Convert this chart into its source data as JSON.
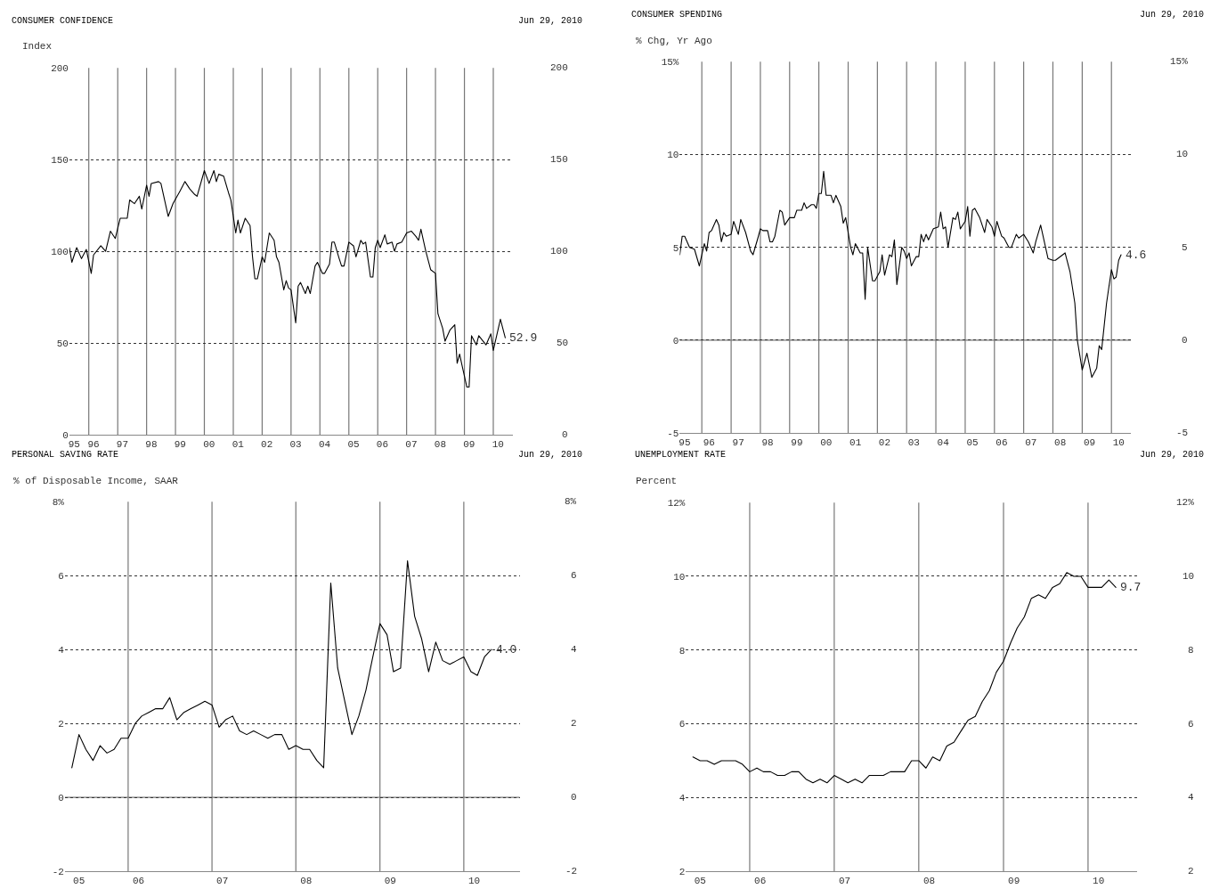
{
  "chart_data": [
    {
      "type": "line",
      "title": "CONSUMER CONFIDENCE",
      "ylabel": "Index",
      "annotations": [
        "Jun 29, 2010",
        {
          "text": "52.9",
          "x": "2010-06",
          "y": 52.9
        }
      ],
      "x": [
        "1995-05",
        "1995-06",
        "1995-08",
        "1995-10",
        "1995-12",
        "1996-02",
        "1996-03",
        "1996-06",
        "1996-08",
        "1996-10",
        "1996-12",
        "1997-02",
        "1997-05",
        "1997-06",
        "1997-08",
        "1997-10",
        "1997-11",
        "1998-01",
        "1998-02",
        "1998-03",
        "1998-06",
        "1998-07",
        "1998-10",
        "1998-12",
        "1999-03",
        "1999-05",
        "1999-07",
        "1999-09",
        "1999-10",
        "2000-01",
        "2000-03",
        "2000-05",
        "2000-06",
        "2000-07",
        "2000-09",
        "2000-11",
        "2000-12",
        "2001-02",
        "2001-03",
        "2001-04",
        "2001-06",
        "2001-08",
        "2001-09",
        "2001-10",
        "2001-11",
        "2002-01",
        "2002-02",
        "2002-04",
        "2002-06",
        "2002-07",
        "2002-08",
        "2002-10",
        "2002-11",
        "2002-12",
        "2003-01",
        "2003-03",
        "2003-04",
        "2003-05",
        "2003-07",
        "2003-08",
        "2003-09",
        "2003-11",
        "2003-12",
        "2004-02",
        "2004-03",
        "2004-05",
        "2004-06",
        "2004-07",
        "2004-09",
        "2004-10",
        "2004-11",
        "2005-01",
        "2005-03",
        "2005-04",
        "2005-06",
        "2005-07",
        "2005-08",
        "2005-10",
        "2005-11",
        "2005-12",
        "2006-01",
        "2006-02",
        "2006-04",
        "2006-05",
        "2006-07",
        "2006-08",
        "2006-09",
        "2006-11",
        "2007-01",
        "2007-03",
        "2007-05",
        "2007-06",
        "2007-07",
        "2007-09",
        "2007-11",
        "2008-01",
        "2008-02",
        "2008-04",
        "2008-05",
        "2008-07",
        "2008-09",
        "2008-10",
        "2008-11",
        "2008-12",
        "2009-02",
        "2009-03",
        "2009-04",
        "2009-06",
        "2009-07",
        "2009-10",
        "2009-12",
        "2010-01",
        "2010-04",
        "2010-06"
      ],
      "values": [
        102,
        94,
        102,
        96,
        101,
        88,
        98,
        103,
        100,
        111,
        107,
        118,
        118,
        128,
        126,
        130,
        123,
        136,
        130,
        137,
        138,
        137,
        119,
        126,
        133,
        138,
        134,
        131,
        130,
        144,
        137,
        144,
        138,
        142,
        141,
        132,
        128,
        110,
        117,
        110,
        118,
        114,
        97,
        85,
        85,
        97,
        94,
        110,
        106,
        97,
        94,
        79,
        84,
        80,
        79,
        61,
        81,
        83,
        77,
        81,
        77,
        92,
        94,
        88,
        88,
        93,
        105,
        105,
        96,
        92,
        92,
        105,
        103,
        97,
        106,
        104,
        105,
        86,
        86,
        102,
        106,
        102,
        109,
        104,
        105,
        100,
        104,
        105,
        110,
        111,
        108,
        106,
        112,
        100,
        90,
        88,
        66,
        58,
        51,
        57,
        60,
        39,
        44,
        38,
        26,
        26,
        54,
        49,
        54,
        49,
        55,
        46,
        63,
        52.9
      ],
      "color": "#000000",
      "ylim": [
        0,
        200
      ],
      "yticks": [
        0,
        50,
        100,
        150,
        200
      ],
      "y2lim": [
        0,
        200
      ],
      "y2ticks": [
        0,
        50,
        100,
        150,
        200
      ],
      "xlim": [
        "1995-05",
        "2010-09"
      ],
      "xticks": [
        {
          "value": "1995-07",
          "label": "95"
        },
        {
          "value": "1996-03",
          "label": "96"
        },
        {
          "value": "1997-03",
          "label": "97"
        },
        {
          "value": "1998-03",
          "label": "98"
        },
        {
          "value": "1999-03",
          "label": "99"
        },
        {
          "value": "2000-03",
          "label": "00"
        },
        {
          "value": "2001-03",
          "label": "01"
        },
        {
          "value": "2002-03",
          "label": "02"
        },
        {
          "value": "2003-03",
          "label": "03"
        },
        {
          "value": "2004-03",
          "label": "04"
        },
        {
          "value": "2005-03",
          "label": "05"
        },
        {
          "value": "2006-03",
          "label": "06"
        },
        {
          "value": "2007-03",
          "label": "07"
        },
        {
          "value": "2008-03",
          "label": "08"
        },
        {
          "value": "2009-03",
          "label": "09"
        },
        {
          "value": "2010-03",
          "label": "10"
        }
      ],
      "ref_lines": [
        {
          "axis": "x",
          "value": "1996-01-01"
        },
        {
          "axis": "x",
          "value": "1997-01-01"
        },
        {
          "axis": "x",
          "value": "1998-01-01"
        },
        {
          "axis": "x",
          "value": "1999-01-01"
        },
        {
          "axis": "x",
          "value": "2000-01-01"
        },
        {
          "axis": "x",
          "value": "2001-01-01"
        },
        {
          "axis": "x",
          "value": "2002-01-01"
        },
        {
          "axis": "x",
          "value": "2003-01-01"
        },
        {
          "axis": "x",
          "value": "2004-01-01"
        },
        {
          "axis": "x",
          "value": "2005-01-01"
        },
        {
          "axis": "x",
          "value": "2006-01-01"
        },
        {
          "axis": "x",
          "value": "2007-01-01"
        },
        {
          "axis": "x",
          "value": "2008-01-01"
        },
        {
          "axis": "x",
          "value": "2009-01-01"
        },
        {
          "axis": "x",
          "value": "2010-01-01"
        }
      ],
      "grid": "y",
      "line_style": "solid"
    },
    {
      "type": "line",
      "title": "CONSUMER SPENDING",
      "ylabel": "% Chg, Yr Ago",
      "annotations": [
        "Jun 29, 2010",
        {
          "text": "4.6",
          "x": "2010-05",
          "y": 4.6
        }
      ],
      "x": [
        "1995-04",
        "1995-05",
        "1995-06",
        "1995-08",
        "1995-10",
        "1995-12",
        "1996-02",
        "1996-03",
        "1996-04",
        "1996-05",
        "1996-07",
        "1996-08",
        "1996-09",
        "1996-10",
        "1996-11",
        "1997-01",
        "1997-02",
        "1997-04",
        "1997-05",
        "1997-07",
        "1997-09",
        "1997-10",
        "1997-12",
        "1998-01",
        "1998-02",
        "1998-04",
        "1998-05",
        "1998-06",
        "1998-07",
        "1998-09",
        "1998-10",
        "1998-11",
        "1999-01",
        "1999-03",
        "1999-04",
        "1999-06",
        "1999-07",
        "1999-08",
        "1999-10",
        "1999-11",
        "1999-12",
        "2000-01",
        "2000-02",
        "2000-03",
        "2000-04",
        "2000-06",
        "2000-07",
        "2000-08",
        "2000-10",
        "2000-11",
        "2000-12",
        "2001-02",
        "2001-03",
        "2001-04",
        "2001-06",
        "2001-07",
        "2001-08",
        "2001-09",
        "2001-11",
        "2001-12",
        "2002-02",
        "2002-03",
        "2002-04",
        "2002-06",
        "2002-07",
        "2002-08",
        "2002-09",
        "2002-11",
        "2002-12",
        "2003-01",
        "2003-02",
        "2003-03",
        "2003-05",
        "2003-06",
        "2003-07",
        "2003-08",
        "2003-09",
        "2003-10",
        "2003-12",
        "2004-02",
        "2004-03",
        "2004-04",
        "2004-05",
        "2004-06",
        "2004-08",
        "2004-09",
        "2004-10",
        "2004-11",
        "2005-01",
        "2005-02",
        "2005-03",
        "2005-04",
        "2005-05",
        "2005-07",
        "2005-09",
        "2005-10",
        "2005-12",
        "2006-01",
        "2006-02",
        "2006-04",
        "2006-05",
        "2006-07",
        "2006-08",
        "2006-10",
        "2006-11",
        "2007-01",
        "2007-03",
        "2007-05",
        "2007-06",
        "2007-08",
        "2007-11",
        "2008-01",
        "2008-02",
        "2008-06",
        "2008-08",
        "2008-10",
        "2008-11",
        "2009-01",
        "2009-03",
        "2009-05",
        "2009-07",
        "2009-08",
        "2009-09",
        "2009-11",
        "2010-01",
        "2010-02",
        "2010-03",
        "2010-04",
        "2010-05"
      ],
      "values": [
        4.6,
        5.6,
        5.6,
        5.0,
        4.9,
        4.0,
        5.2,
        4.8,
        5.8,
        5.9,
        6.5,
        6.2,
        5.3,
        5.8,
        5.6,
        5.7,
        6.4,
        5.7,
        6.5,
        5.8,
        4.8,
        4.6,
        5.5,
        6.0,
        5.9,
        5.9,
        5.3,
        5.3,
        5.6,
        7.0,
        6.9,
        6.2,
        6.6,
        6.6,
        7.0,
        7.0,
        7.4,
        7.1,
        7.3,
        7.3,
        7.1,
        7.9,
        7.9,
        9.1,
        7.8,
        7.8,
        7.4,
        7.8,
        7.2,
        6.3,
        6.6,
        5.0,
        4.6,
        5.2,
        4.7,
        4.7,
        2.2,
        5.0,
        3.2,
        3.2,
        3.7,
        4.6,
        3.5,
        4.6,
        4.5,
        5.4,
        3.0,
        5.0,
        4.8,
        4.4,
        4.7,
        4.0,
        4.5,
        4.5,
        5.7,
        5.3,
        5.7,
        5.4,
        6.0,
        6.1,
        6.9,
        6.0,
        6.1,
        5.0,
        6.6,
        6.5,
        6.9,
        6.0,
        6.4,
        7.2,
        5.6,
        7.0,
        7.1,
        6.6,
        5.8,
        6.5,
        6.1,
        5.6,
        6.4,
        5.6,
        5.5,
        5.0,
        5.0,
        5.7,
        5.5,
        5.7,
        5.3,
        4.7,
        5.3,
        6.2,
        4.4,
        4.3,
        4.3,
        4.7,
        3.7,
        2.0,
        0.0,
        -1.6,
        -0.7,
        -2.0,
        -1.5,
        -0.3,
        -0.5,
        2.0,
        3.8,
        3.3,
        3.4,
        4.3,
        4.6
      ],
      "color": "#000000",
      "ylim": [
        -5,
        15
      ],
      "yticks": [
        -5,
        0,
        5,
        10,
        {
          "value": 15,
          "label": "15%"
        }
      ],
      "y2lim": [
        -5,
        15
      ],
      "y2ticks": [
        -5,
        0,
        5,
        10,
        {
          "value": 15,
          "label": "15%"
        }
      ],
      "xlim": [
        "1995-04",
        "2010-09"
      ],
      "xticks": [
        {
          "value": "1995-06",
          "label": "95"
        },
        {
          "value": "1996-04",
          "label": "96"
        },
        {
          "value": "1997-04",
          "label": "97"
        },
        {
          "value": "1998-04",
          "label": "98"
        },
        {
          "value": "1999-04",
          "label": "99"
        },
        {
          "value": "2000-04",
          "label": "00"
        },
        {
          "value": "2001-04",
          "label": "01"
        },
        {
          "value": "2002-04",
          "label": "02"
        },
        {
          "value": "2003-04",
          "label": "03"
        },
        {
          "value": "2004-04",
          "label": "04"
        },
        {
          "value": "2005-04",
          "label": "05"
        },
        {
          "value": "2006-04",
          "label": "06"
        },
        {
          "value": "2007-04",
          "label": "07"
        },
        {
          "value": "2008-04",
          "label": "08"
        },
        {
          "value": "2009-04",
          "label": "09"
        },
        {
          "value": "2010-04",
          "label": "10"
        }
      ],
      "ref_lines": [
        {
          "axis": "y",
          "value": 0
        },
        {
          "axis": "x",
          "value": "1996-01-01"
        },
        {
          "axis": "x",
          "value": "1997-01-01"
        },
        {
          "axis": "x",
          "value": "1998-01-01"
        },
        {
          "axis": "x",
          "value": "1999-01-01"
        },
        {
          "axis": "x",
          "value": "2000-01-01"
        },
        {
          "axis": "x",
          "value": "2001-01-01"
        },
        {
          "axis": "x",
          "value": "2002-01-01"
        },
        {
          "axis": "x",
          "value": "2003-01-01"
        },
        {
          "axis": "x",
          "value": "2004-01-01"
        },
        {
          "axis": "x",
          "value": "2005-01-01"
        },
        {
          "axis": "x",
          "value": "2006-01-01"
        },
        {
          "axis": "x",
          "value": "2007-01-01"
        },
        {
          "axis": "x",
          "value": "2008-01-01"
        },
        {
          "axis": "x",
          "value": "2009-01-01"
        },
        {
          "axis": "x",
          "value": "2010-01-01"
        }
      ],
      "grid": "y",
      "line_style": "solid"
    },
    {
      "type": "line",
      "title": "PERSONAL SAVING RATE",
      "ylabel": "% of Disposable Income, SAAR",
      "annotations": [
        "Jun 29, 2010",
        {
          "text": "4.0",
          "x": "2010-05",
          "y": 4.0
        }
      ],
      "x": [
        "2005-05",
        "2005-06",
        "2005-07",
        "2005-08",
        "2005-09",
        "2005-10",
        "2005-11",
        "2005-12",
        "2006-01",
        "2006-02",
        "2006-03",
        "2006-04",
        "2006-05",
        "2006-06",
        "2006-07",
        "2006-08",
        "2006-09",
        "2006-10",
        "2006-11",
        "2006-12",
        "2007-01",
        "2007-02",
        "2007-03",
        "2007-04",
        "2007-05",
        "2007-06",
        "2007-07",
        "2007-08",
        "2007-09",
        "2007-10",
        "2007-11",
        "2007-12",
        "2008-01",
        "2008-02",
        "2008-03",
        "2008-04",
        "2008-05",
        "2008-06",
        "2008-07",
        "2008-08",
        "2008-09",
        "2008-10",
        "2008-11",
        "2008-12",
        "2009-01",
        "2009-02",
        "2009-03",
        "2009-04",
        "2009-05",
        "2009-06",
        "2009-07",
        "2009-08",
        "2009-09",
        "2009-10",
        "2009-11",
        "2009-12",
        "2010-01",
        "2010-02",
        "2010-03",
        "2010-04",
        "2010-05"
      ],
      "values": [
        0.8,
        1.7,
        1.3,
        1.0,
        1.4,
        1.2,
        1.3,
        1.6,
        1.6,
        2.0,
        2.2,
        2.3,
        2.4,
        2.4,
        2.7,
        2.1,
        2.3,
        2.4,
        2.5,
        2.6,
        2.5,
        1.9,
        2.1,
        2.2,
        1.8,
        1.7,
        1.8,
        1.7,
        1.6,
        1.7,
        1.7,
        1.3,
        1.4,
        1.3,
        1.3,
        1.0,
        0.8,
        5.8,
        3.5,
        2.6,
        1.7,
        2.2,
        2.9,
        3.8,
        4.7,
        4.4,
        3.4,
        3.5,
        6.4,
        4.9,
        4.3,
        3.4,
        4.2,
        3.7,
        3.6,
        3.7,
        3.8,
        3.4,
        3.3,
        3.8,
        4.0
      ],
      "color": "#000000",
      "ylim": [
        -2,
        8
      ],
      "yticks": [
        -2,
        0,
        2,
        4,
        6,
        {
          "value": 8,
          "label": "8%"
        }
      ],
      "y2lim": [
        -2,
        8
      ],
      "y2ticks": [
        -2,
        0,
        2,
        4,
        6,
        {
          "value": 8,
          "label": "8%"
        }
      ],
      "xlim": [
        "2005-04",
        "2010-09"
      ],
      "xticks": [
        {
          "value": "2005-06",
          "label": "05"
        },
        {
          "value": "2006-02-15",
          "label": "06"
        },
        {
          "value": "2007-02-15",
          "label": "07"
        },
        {
          "value": "2008-02-15",
          "label": "08"
        },
        {
          "value": "2009-02-15",
          "label": "09"
        },
        {
          "value": "2010-02-15",
          "label": "10"
        }
      ],
      "ref_lines": [
        {
          "axis": "y",
          "value": 0
        },
        {
          "axis": "x",
          "value": "2006-01-01"
        },
        {
          "axis": "x",
          "value": "2007-01-01"
        },
        {
          "axis": "x",
          "value": "2008-01-01"
        },
        {
          "axis": "x",
          "value": "2009-01-01"
        },
        {
          "axis": "x",
          "value": "2010-01-01"
        }
      ],
      "grid": "y",
      "line_style": "solid"
    },
    {
      "type": "line",
      "title": "UNEMPLOYMENT RATE",
      "ylabel": "Percent",
      "annotations": [
        "Jun 29, 2010",
        {
          "text": "9.7",
          "x": "2010-05",
          "y": 9.7
        }
      ],
      "x": [
        "2005-05",
        "2005-06",
        "2005-07",
        "2005-08",
        "2005-09",
        "2005-10",
        "2005-11",
        "2005-12",
        "2006-01",
        "2006-02",
        "2006-03",
        "2006-04",
        "2006-05",
        "2006-06",
        "2006-07",
        "2006-08",
        "2006-09",
        "2006-10",
        "2006-11",
        "2006-12",
        "2007-01",
        "2007-02",
        "2007-03",
        "2007-04",
        "2007-05",
        "2007-06",
        "2007-07",
        "2007-08",
        "2007-09",
        "2007-10",
        "2007-11",
        "2007-12",
        "2008-01",
        "2008-02",
        "2008-03",
        "2008-04",
        "2008-05",
        "2008-06",
        "2008-07",
        "2008-08",
        "2008-09",
        "2008-10",
        "2008-11",
        "2008-12",
        "2009-01",
        "2009-02",
        "2009-03",
        "2009-04",
        "2009-05",
        "2009-06",
        "2009-07",
        "2009-08",
        "2009-09",
        "2009-10",
        "2009-11",
        "2009-12",
        "2010-01",
        "2010-02",
        "2010-03",
        "2010-04",
        "2010-05"
      ],
      "values": [
        5.1,
        5.0,
        5.0,
        4.9,
        5.0,
        5.0,
        5.0,
        4.9,
        4.7,
        4.8,
        4.7,
        4.7,
        4.6,
        4.6,
        4.7,
        4.7,
        4.5,
        4.4,
        4.5,
        4.4,
        4.6,
        4.5,
        4.4,
        4.5,
        4.4,
        4.6,
        4.6,
        4.6,
        4.7,
        4.7,
        4.7,
        5.0,
        5.0,
        4.8,
        5.1,
        5.0,
        5.4,
        5.5,
        5.8,
        6.1,
        6.2,
        6.6,
        6.9,
        7.4,
        7.7,
        8.2,
        8.6,
        8.9,
        9.4,
        9.5,
        9.4,
        9.7,
        9.8,
        10.1,
        10.0,
        10.0,
        9.7,
        9.7,
        9.7,
        9.9,
        9.7
      ],
      "color": "#000000",
      "ylim": [
        2,
        12
      ],
      "yticks": [
        2,
        4,
        6,
        8,
        10,
        {
          "value": 12,
          "label": "12%"
        }
      ],
      "y2lim": [
        2,
        12
      ],
      "y2ticks": [
        2,
        4,
        6,
        8,
        10,
        {
          "value": 12,
          "label": "12%"
        }
      ],
      "xlim": [
        "2005-04",
        "2010-08"
      ],
      "xticks": [
        {
          "value": "2005-06",
          "label": "05"
        },
        {
          "value": "2006-02-15",
          "label": "06"
        },
        {
          "value": "2007-02-15",
          "label": "07"
        },
        {
          "value": "2008-02-15",
          "label": "08"
        },
        {
          "value": "2009-02-15",
          "label": "09"
        },
        {
          "value": "2010-02-15",
          "label": "10"
        }
      ],
      "ref_lines": [
        {
          "axis": "x",
          "value": "2006-01-01"
        },
        {
          "axis": "x",
          "value": "2007-01-01"
        },
        {
          "axis": "x",
          "value": "2008-01-01"
        },
        {
          "axis": "x",
          "value": "2009-01-01"
        },
        {
          "axis": "x",
          "value": "2010-01-01"
        }
      ],
      "grid": "y",
      "line_style": "solid"
    }
  ]
}
